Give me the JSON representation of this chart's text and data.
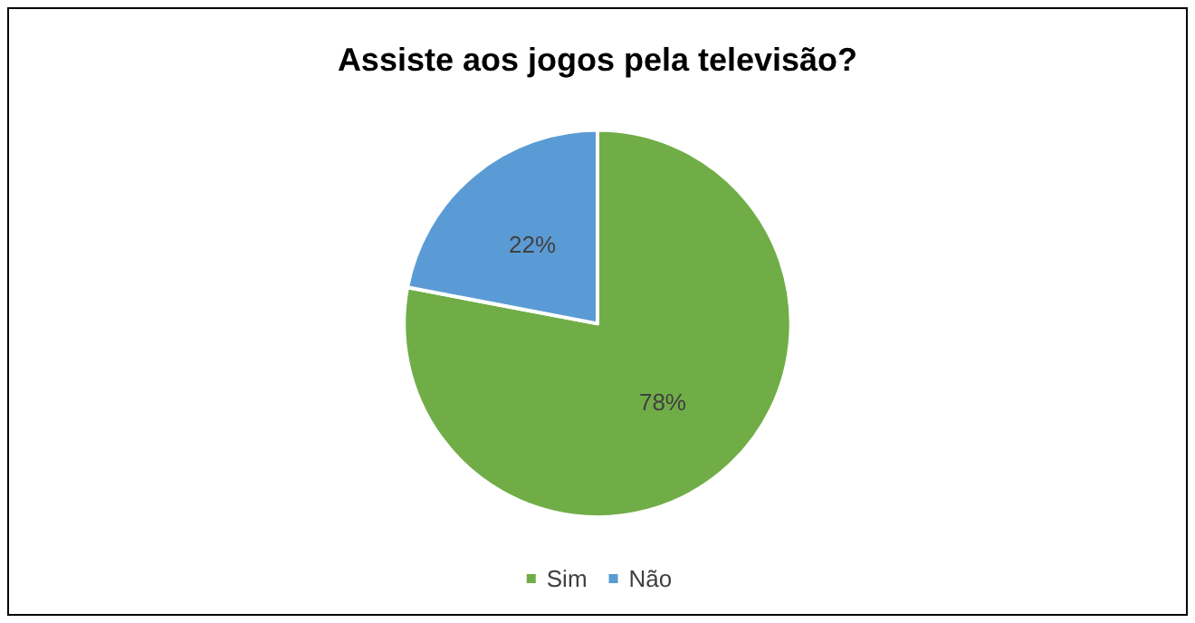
{
  "chart_data": {
    "type": "pie",
    "title": "Assiste aos jogos pela televisão?",
    "categories": [
      "Sim",
      "Não"
    ],
    "values": [
      78,
      22
    ],
    "value_labels": [
      "78%",
      "22%"
    ],
    "colors": [
      "#70ad47",
      "#5b9bd5"
    ],
    "legend": "bottom"
  }
}
